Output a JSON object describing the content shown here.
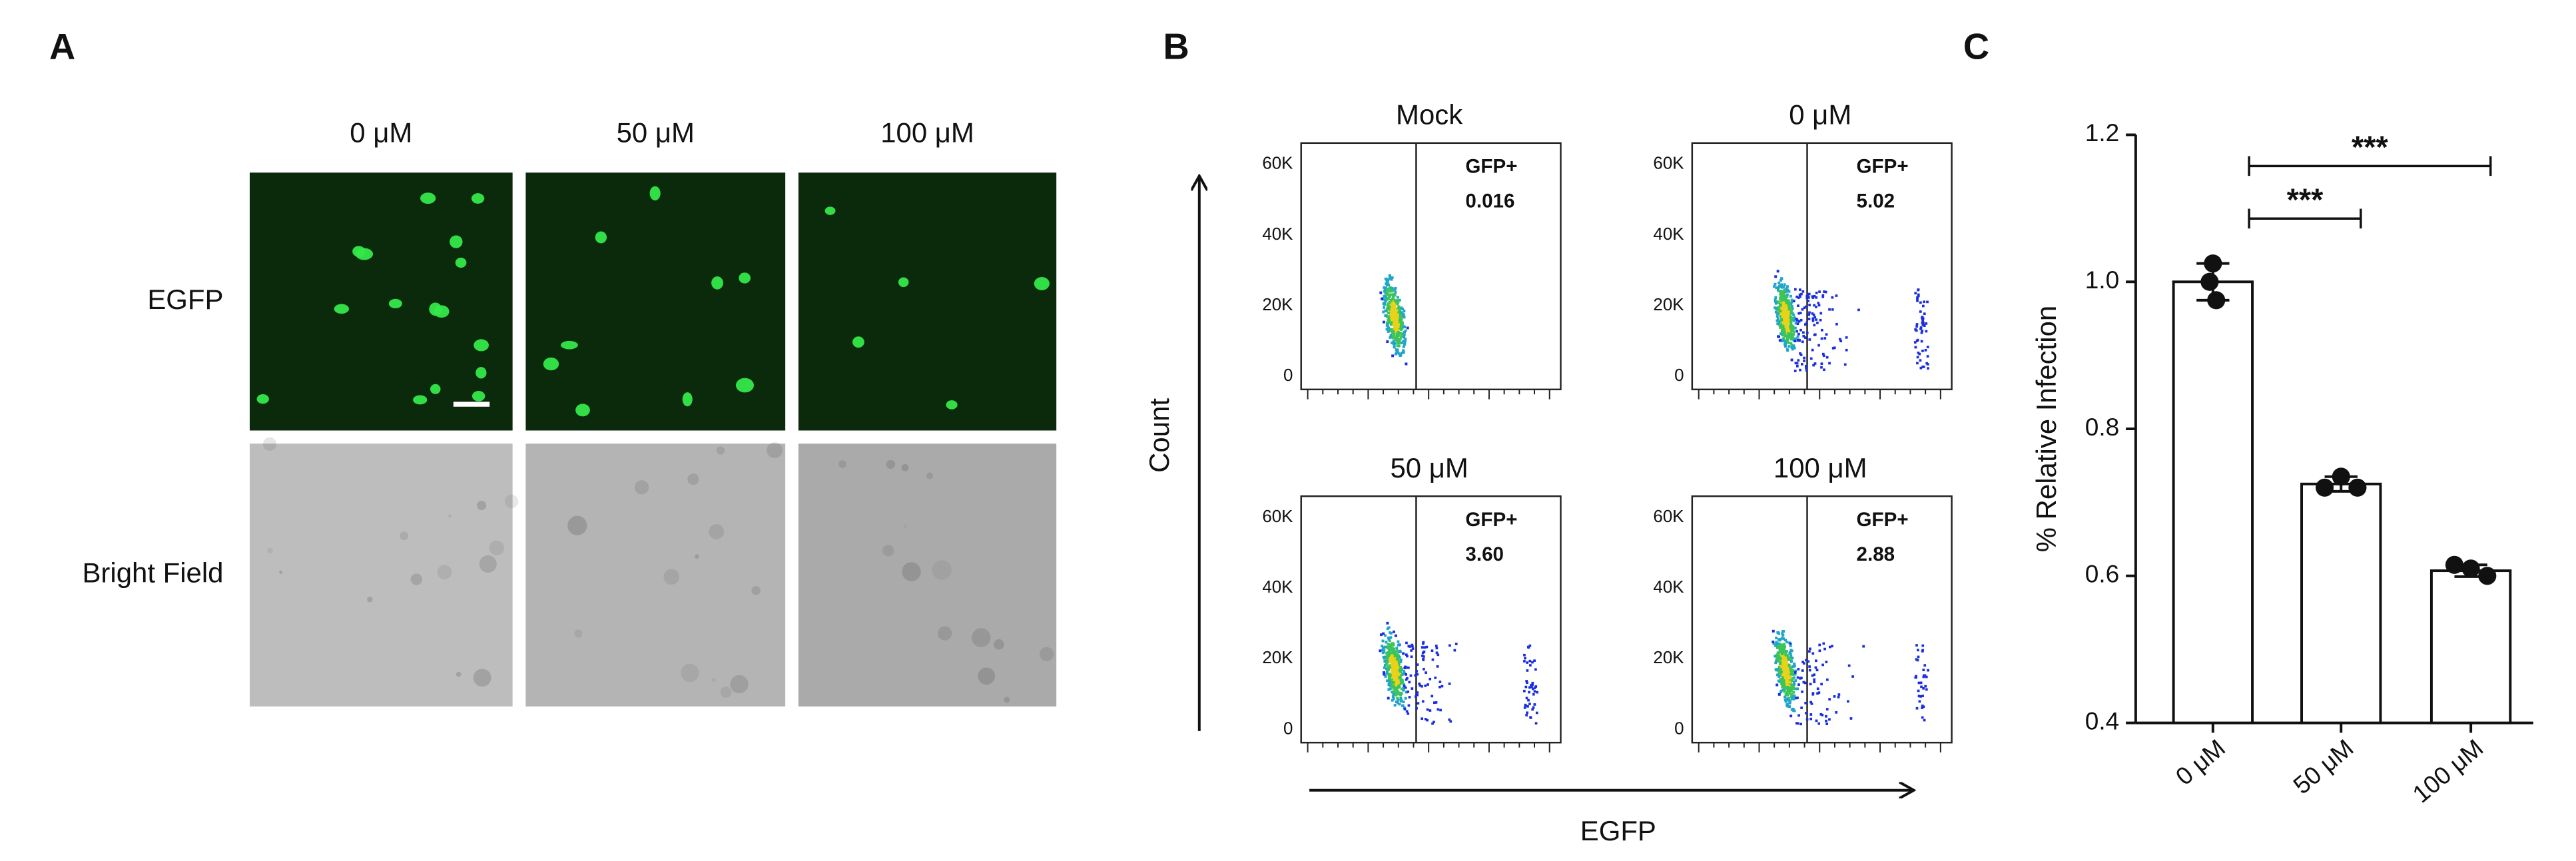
{
  "panel_a": {
    "letter": "A",
    "columns": [
      "0 μM",
      "50 μM",
      "100 μM"
    ],
    "rows": [
      "EGFP",
      "Bright Field"
    ]
  },
  "panel_b": {
    "letter": "B",
    "y_label": "Count",
    "x_label": "EGFP",
    "yticks": [
      "60K",
      "40K",
      "20K",
      "0"
    ],
    "plots": [
      {
        "title": "Mock",
        "gate": "GFP+",
        "percent": "0.016"
      },
      {
        "title": "0 μM",
        "gate": "GFP+",
        "percent": "5.02"
      },
      {
        "title": "50 μM",
        "gate": "GFP+",
        "percent": "3.60"
      },
      {
        "title": "100 μM",
        "gate": "GFP+",
        "percent": "2.88"
      }
    ]
  },
  "chart_data": {
    "type": "bar",
    "letter": "C",
    "ylabel": "% Relative Infection",
    "categories": [
      "0 μM",
      "50 μM",
      "100 μM"
    ],
    "values": [
      1.0,
      0.725,
      0.607
    ],
    "errors": [
      0.025,
      0.01,
      0.008
    ],
    "points": [
      [
        1.025,
        1.0,
        0.975
      ],
      [
        0.735,
        0.72,
        0.72
      ],
      [
        0.61,
        0.615,
        0.6
      ]
    ],
    "color": "#ffffff",
    "ylim": [
      0.4,
      1.2
    ],
    "yticks": [
      0.4,
      0.6,
      0.8,
      {
        "value": 1.0,
        "label": "1.0"
      },
      1.2
    ],
    "significance": [
      {
        "from": 0,
        "to": 1,
        "label": "***"
      },
      {
        "from": 0,
        "to": 2,
        "label": "***"
      }
    ]
  }
}
